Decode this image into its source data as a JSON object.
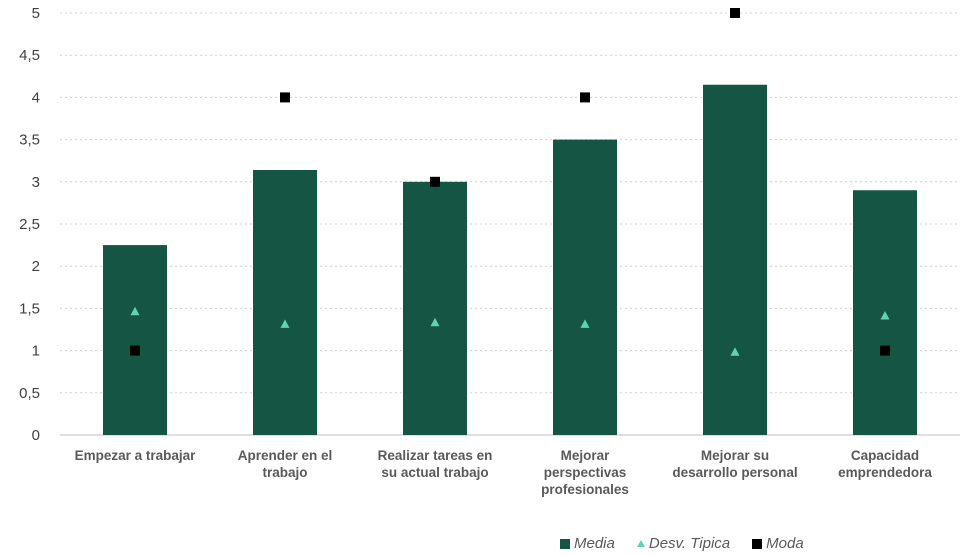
{
  "chart_data": {
    "type": "bar",
    "categories": [
      [
        "Empezar a trabajar"
      ],
      [
        "Aprender en el",
        "trabajo"
      ],
      [
        "Realizar tareas en",
        "su actual trabajo"
      ],
      [
        "Mejorar",
        "perspectivas",
        "profesionales"
      ],
      [
        "Mejorar su",
        "desarrollo personal"
      ],
      [
        "Capacidad",
        "emprendedora"
      ]
    ],
    "series": [
      {
        "name": "Media",
        "kind": "bar",
        "color": "#145543",
        "values": [
          2.25,
          3.14,
          3.0,
          3.5,
          4.15,
          2.9
        ]
      },
      {
        "name": "Desv. Tipica",
        "kind": "triangle",
        "color": "#5fd3b3",
        "values": [
          1.46,
          1.31,
          1.33,
          1.31,
          0.98,
          1.41
        ]
      },
      {
        "name": "Moda",
        "kind": "square",
        "color": "#000000",
        "values": [
          1,
          4,
          3,
          4,
          5,
          1
        ]
      }
    ],
    "ylim": [
      0,
      5
    ],
    "yticks": [
      "0",
      "0,5",
      "1",
      "1,5",
      "2",
      "2,5",
      "3",
      "3,5",
      "4",
      "4,5",
      "5"
    ],
    "grid": true,
    "legend_position": "bottom-right"
  }
}
